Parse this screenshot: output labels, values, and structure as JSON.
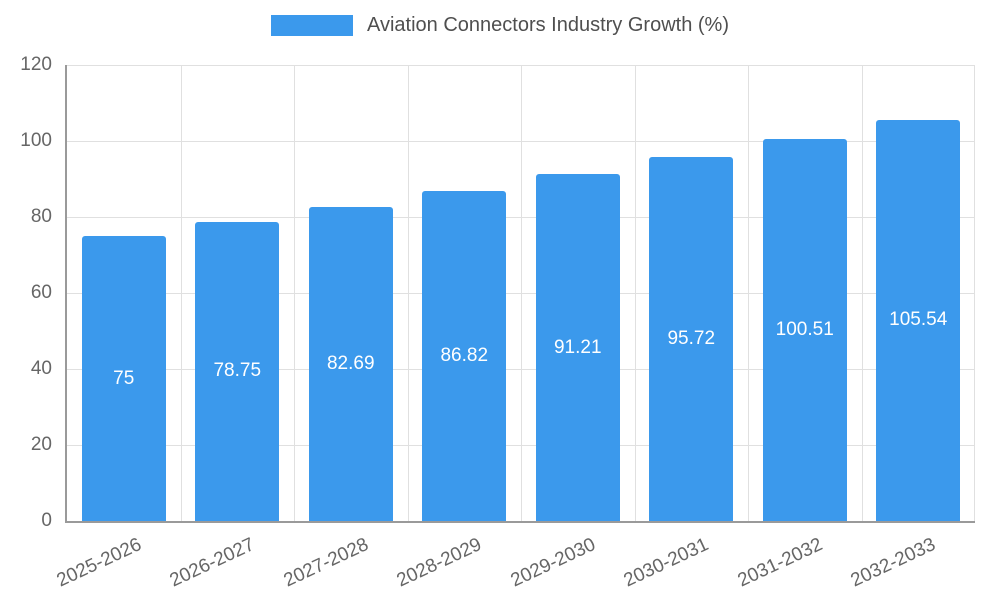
{
  "chart_data": {
    "type": "bar",
    "title": "Aviation Connectors Industry Growth (%)",
    "categories": [
      "2025-2026",
      "2026-2027",
      "2027-2028",
      "2028-2029",
      "2029-2030",
      "2030-2031",
      "2031-2032",
      "2032-2033"
    ],
    "values": [
      75,
      78.75,
      82.69,
      86.82,
      91.21,
      95.72,
      100.51,
      105.54
    ],
    "value_labels": [
      "75",
      "78.75",
      "82.69",
      "86.82",
      "91.21",
      "95.72",
      "100.51",
      "105.54"
    ],
    "xlabel": "",
    "ylabel": "",
    "ylim": [
      0,
      120
    ],
    "yticks": [
      0,
      20,
      40,
      60,
      80,
      100,
      120
    ],
    "grid": true,
    "legend_position": "top",
    "x_label_rotation_deg": -25
  },
  "colors": {
    "bar": "#3b99ec",
    "bar_label": "#ffffff",
    "grid": "#e0e0e0",
    "axis": "#9a9a9a",
    "tick_text": "#666666",
    "title_text": "#4f4f4f",
    "background": "#ffffff"
  }
}
